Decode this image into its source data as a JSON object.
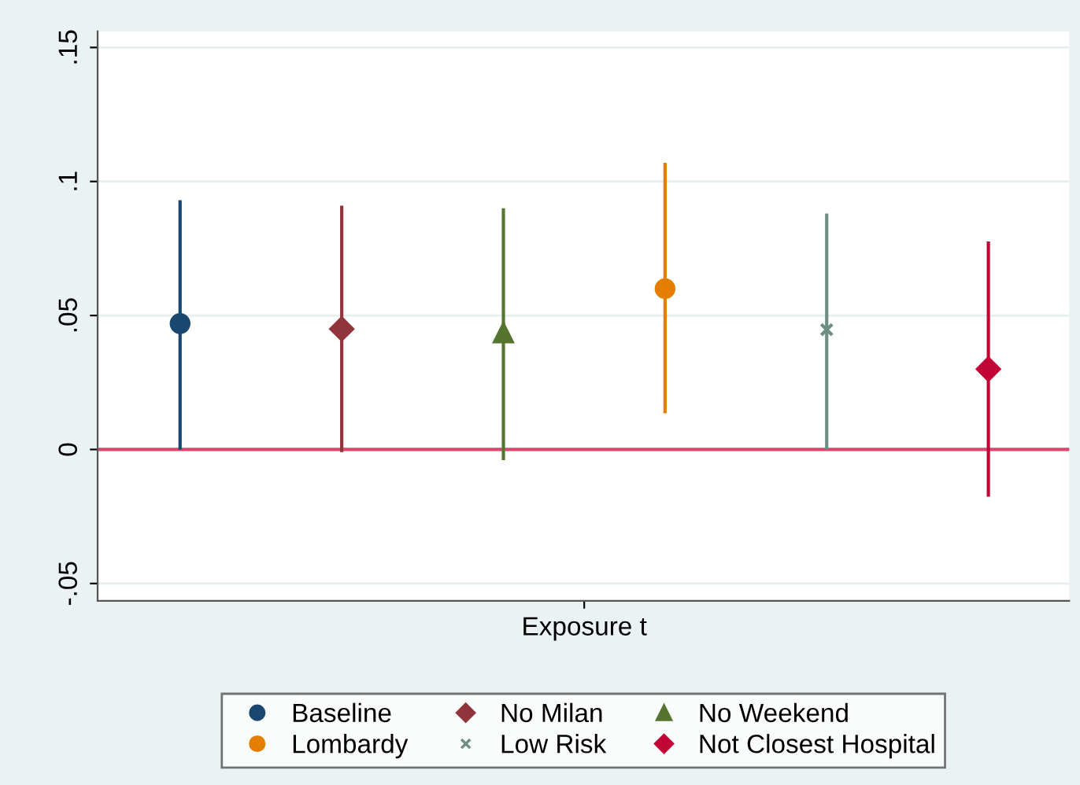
{
  "chart_data": {
    "type": "scatter",
    "categories": [
      "Exposure t"
    ],
    "series": [
      {
        "name": "Baseline",
        "color": "#1a476f",
        "marker": "circle",
        "values": [
          0.047
        ],
        "errors": [
          [
            0.0,
            0.093
          ]
        ]
      },
      {
        "name": "No Milan",
        "color": "#90353b",
        "marker": "diamond",
        "values": [
          0.045
        ],
        "errors": [
          [
            -0.001,
            0.091
          ]
        ]
      },
      {
        "name": "No Weekend",
        "color": "#55752f",
        "marker": "triangle",
        "values": [
          0.0435
        ],
        "errors": [
          [
            -0.004,
            0.09
          ]
        ]
      },
      {
        "name": "Lombardy",
        "color": "#e37e00",
        "marker": "circle",
        "values": [
          0.06
        ],
        "errors": [
          [
            0.0135,
            0.107
          ]
        ]
      },
      {
        "name": "Low Risk",
        "color": "#6e8e84",
        "marker": "cross",
        "values": [
          0.0447
        ],
        "errors": [
          [
            0.0,
            0.088
          ]
        ]
      },
      {
        "name": "Not Closest Hospital",
        "color": "#c10534",
        "marker": "diamond",
        "values": [
          0.03
        ],
        "errors": [
          [
            -0.0176,
            0.0776
          ]
        ]
      }
    ],
    "ylim": [
      -0.0565,
      0.156
    ],
    "yticks": [
      {
        "value": -0.05,
        "label": "-.05"
      },
      {
        "value": 0,
        "label": "0"
      },
      {
        "value": 0.05,
        "label": ".05"
      },
      {
        "value": 0.1,
        "label": ".1"
      },
      {
        "value": 0.15,
        "label": ".15"
      }
    ],
    "ref_lines": [
      {
        "axis": "y",
        "value": 0,
        "color": "#d6496c"
      }
    ],
    "grid": "y",
    "legend": "bottom"
  }
}
